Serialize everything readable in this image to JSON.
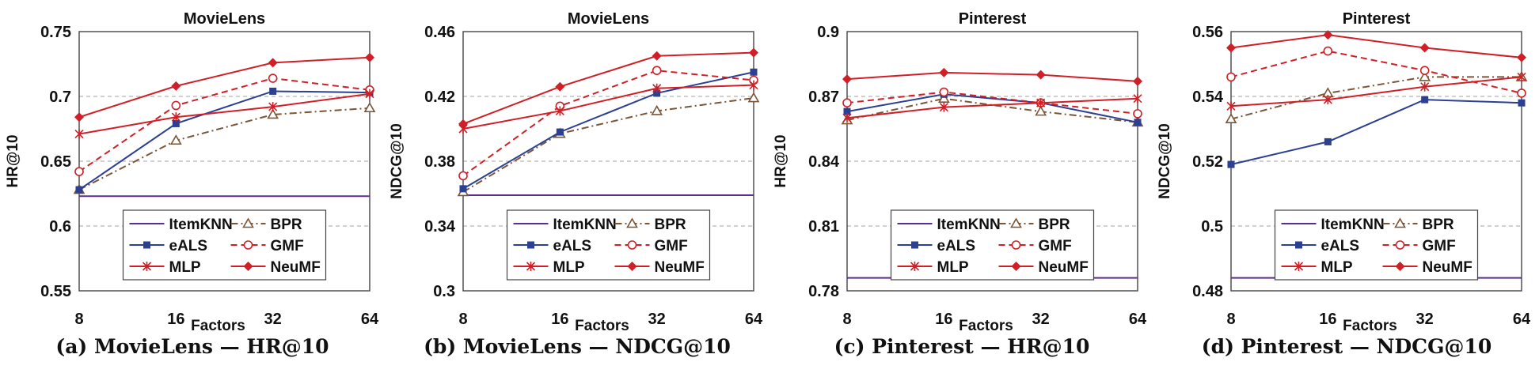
{
  "legend_labels": {
    "itemknn": "ItemKNN",
    "bpr": "BPR",
    "eals": "eALS",
    "gmf": "GMF",
    "mlp": "MLP",
    "neumf": "NeuMF"
  },
  "colors": {
    "itemknn": "#5b2d90",
    "bpr": "#7b5536",
    "eals": "#2b3f93",
    "gmf": "#d01f26",
    "mlp": "#d01f26",
    "neumf": "#d01f26"
  },
  "captions": [
    "(a) MovieLens — HR@10",
    "(b) MovieLens — NDCG@10",
    "(c) Pinterest — HR@10",
    "(d) Pinterest — NDCG@10"
  ],
  "chart_data": [
    {
      "type": "line",
      "title": "MovieLens",
      "xlabel": "Factors",
      "ylabel": "HR@10",
      "categories": [
        "8",
        "16",
        "32",
        "64"
      ],
      "ylim": [
        0.55,
        0.75
      ],
      "yticks": [
        0.55,
        0.6,
        0.65,
        0.7,
        0.75
      ],
      "ytick_labels": [
        "0.55",
        "0.6",
        "0.65",
        "0.7",
        "0.75"
      ],
      "grid": "dashed-horizontal",
      "legend_position": "bottom-center",
      "series": [
        {
          "key": "itemknn",
          "name": "ItemKNN",
          "values": [
            0.623,
            0.623,
            0.623,
            0.623
          ]
        },
        {
          "key": "bpr",
          "name": "BPR",
          "values": [
            0.628,
            0.666,
            0.686,
            0.691
          ]
        },
        {
          "key": "eals",
          "name": "eALS",
          "values": [
            0.628,
            0.679,
            0.704,
            0.703
          ]
        },
        {
          "key": "gmf",
          "name": "GMF",
          "values": [
            0.642,
            0.693,
            0.714,
            0.705
          ]
        },
        {
          "key": "mlp",
          "name": "MLP",
          "values": [
            0.671,
            0.684,
            0.692,
            0.702
          ]
        },
        {
          "key": "neumf",
          "name": "NeuMF",
          "values": [
            0.684,
            0.708,
            0.726,
            0.73
          ]
        }
      ]
    },
    {
      "type": "line",
      "title": "MovieLens",
      "xlabel": "Factors",
      "ylabel": "NDCG@10",
      "categories": [
        "8",
        "16",
        "32",
        "64"
      ],
      "ylim": [
        0.3,
        0.46
      ],
      "yticks": [
        0.3,
        0.34,
        0.38,
        0.42,
        0.46
      ],
      "ytick_labels": [
        "0.3",
        "0.34",
        "0.38",
        "0.42",
        "0.46"
      ],
      "grid": "dashed-horizontal",
      "legend_position": "bottom-center",
      "series": [
        {
          "key": "itemknn",
          "name": "ItemKNN",
          "values": [
            0.359,
            0.359,
            0.359,
            0.359
          ]
        },
        {
          "key": "bpr",
          "name": "BPR",
          "values": [
            0.361,
            0.397,
            0.411,
            0.419
          ]
        },
        {
          "key": "eals",
          "name": "eALS",
          "values": [
            0.363,
            0.398,
            0.422,
            0.435
          ]
        },
        {
          "key": "gmf",
          "name": "GMF",
          "values": [
            0.371,
            0.414,
            0.436,
            0.43
          ]
        },
        {
          "key": "mlp",
          "name": "MLP",
          "values": [
            0.4,
            0.411,
            0.425,
            0.427
          ]
        },
        {
          "key": "neumf",
          "name": "NeuMF",
          "values": [
            0.403,
            0.426,
            0.445,
            0.447
          ]
        }
      ]
    },
    {
      "type": "line",
      "title": "Pinterest",
      "xlabel": "Factors",
      "ylabel": "HR@10",
      "categories": [
        "8",
        "16",
        "32",
        "64"
      ],
      "ylim": [
        0.78,
        0.9
      ],
      "yticks": [
        0.78,
        0.81,
        0.84,
        0.87,
        0.9
      ],
      "ytick_labels": [
        "0.78",
        "0.81",
        "0.84",
        "0.87",
        "0.9"
      ],
      "grid": "dashed-horizontal",
      "legend_position": "bottom-center",
      "series": [
        {
          "key": "itemknn",
          "name": "ItemKNN",
          "values": [
            0.786,
            0.786,
            0.786,
            0.786
          ]
        },
        {
          "key": "bpr",
          "name": "BPR",
          "values": [
            0.859,
            0.869,
            0.863,
            0.858
          ]
        },
        {
          "key": "eals",
          "name": "eALS",
          "values": [
            0.863,
            0.871,
            0.867,
            0.858
          ]
        },
        {
          "key": "gmf",
          "name": "GMF",
          "values": [
            0.867,
            0.872,
            0.867,
            0.862
          ]
        },
        {
          "key": "mlp",
          "name": "MLP",
          "values": [
            0.86,
            0.865,
            0.867,
            0.869
          ]
        },
        {
          "key": "neumf",
          "name": "NeuMF",
          "values": [
            0.878,
            0.881,
            0.88,
            0.877
          ]
        }
      ]
    },
    {
      "type": "line",
      "title": "Pinterest",
      "xlabel": "Factors",
      "ylabel": "NDCG@10",
      "categories": [
        "8",
        "16",
        "32",
        "64"
      ],
      "ylim": [
        0.48,
        0.56
      ],
      "yticks": [
        0.48,
        0.5,
        0.52,
        0.54,
        0.56
      ],
      "ytick_labels": [
        "0.48",
        "0.5",
        "0.52",
        "0.54",
        "0.56"
      ],
      "grid": "dashed-horizontal",
      "legend_position": "bottom-center",
      "series": [
        {
          "key": "itemknn",
          "name": "ItemKNN",
          "values": [
            0.484,
            0.484,
            0.484,
            0.484
          ]
        },
        {
          "key": "bpr",
          "name": "BPR",
          "values": [
            0.533,
            0.541,
            0.546,
            0.546
          ]
        },
        {
          "key": "eals",
          "name": "eALS",
          "values": [
            0.519,
            0.526,
            0.539,
            0.538
          ]
        },
        {
          "key": "gmf",
          "name": "GMF",
          "values": [
            0.546,
            0.554,
            0.548,
            0.541
          ]
        },
        {
          "key": "mlp",
          "name": "MLP",
          "values": [
            0.537,
            0.539,
            0.543,
            0.546
          ]
        },
        {
          "key": "neumf",
          "name": "NeuMF",
          "values": [
            0.555,
            0.559,
            0.555,
            0.552
          ]
        }
      ]
    }
  ]
}
